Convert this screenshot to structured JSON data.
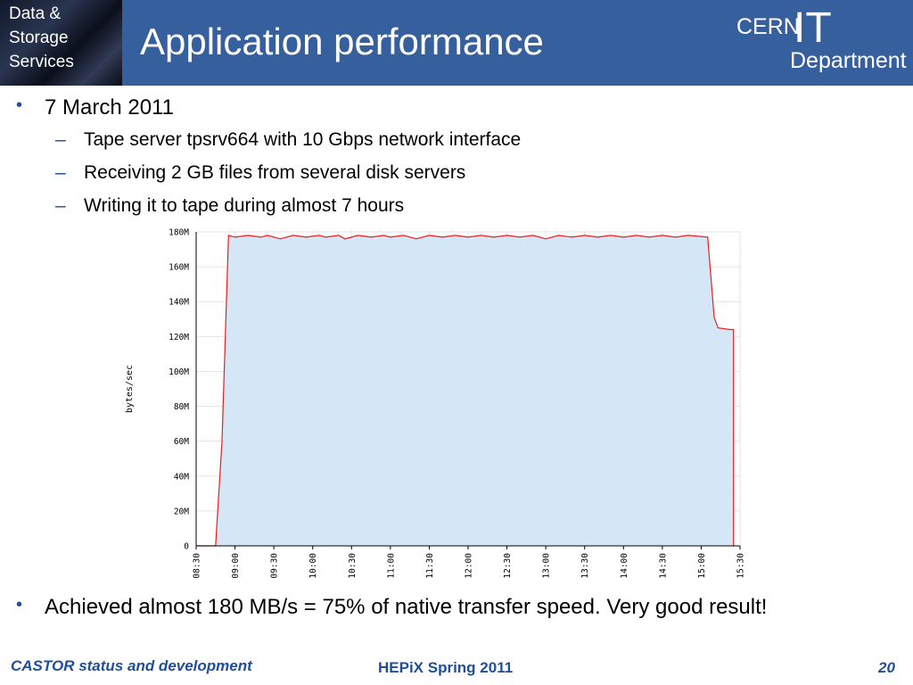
{
  "header": {
    "section_label": "Data &\nStorage\nServices",
    "title": "Application performance",
    "logo": {
      "cern": "CERN",
      "it": "IT",
      "department": "Department"
    }
  },
  "bullets": {
    "date": "7 March 2011",
    "sub": [
      "Tape server tpsrv664 with 10 Gbps network interface",
      "Receiving 2 GB files from several disk servers",
      "Writing it to tape during almost 7 hours"
    ],
    "result": "Achieved almost 180 MB/s = 75% of native transfer speed. Very good result!"
  },
  "footer": {
    "left": "CASTOR status and development",
    "center": "HEPiX Spring 2011",
    "page": "20"
  },
  "colors": {
    "header_bg": "#365f9e",
    "accent": "#1f4e9a",
    "area_fill": "#d5e7f6",
    "line": "#ee1c1c"
  },
  "chart_data": {
    "type": "area",
    "xlabel": "",
    "ylabel": "bytes/sec",
    "x_ticks": [
      "08:30",
      "09:00",
      "09:30",
      "10:00",
      "10:30",
      "11:00",
      "11:30",
      "12:00",
      "12:30",
      "13:00",
      "13:30",
      "14:00",
      "14:30",
      "15:00",
      "15:30"
    ],
    "y_ticks": [
      "0",
      "20M",
      "40M",
      "60M",
      "80M",
      "100M",
      "120M",
      "140M",
      "160M",
      "180M"
    ],
    "ylim": [
      0,
      180
    ],
    "x_range_minutes_after_0830": [
      0,
      420
    ],
    "grid": true,
    "series": [
      {
        "points": [
          [
            0,
            0
          ],
          [
            15,
            0
          ],
          [
            20,
            60
          ],
          [
            25,
            178
          ],
          [
            30,
            177
          ],
          [
            40,
            178
          ],
          [
            50,
            177
          ],
          [
            55,
            178
          ],
          [
            65,
            176
          ],
          [
            75,
            178
          ],
          [
            85,
            177
          ],
          [
            95,
            178
          ],
          [
            100,
            177
          ],
          [
            110,
            178
          ],
          [
            115,
            176
          ],
          [
            125,
            178
          ],
          [
            135,
            177
          ],
          [
            145,
            178
          ],
          [
            150,
            177
          ],
          [
            160,
            178
          ],
          [
            170,
            176
          ],
          [
            180,
            178
          ],
          [
            190,
            177
          ],
          [
            200,
            178
          ],
          [
            210,
            177
          ],
          [
            220,
            178
          ],
          [
            230,
            177
          ],
          [
            240,
            178
          ],
          [
            250,
            177
          ],
          [
            260,
            178
          ],
          [
            270,
            176
          ],
          [
            280,
            178
          ],
          [
            290,
            177
          ],
          [
            300,
            178
          ],
          [
            310,
            177
          ],
          [
            320,
            178
          ],
          [
            330,
            177
          ],
          [
            340,
            178
          ],
          [
            350,
            177
          ],
          [
            360,
            178
          ],
          [
            370,
            177
          ],
          [
            380,
            178
          ],
          [
            395,
            177
          ],
          [
            400,
            131
          ],
          [
            403,
            125
          ],
          [
            412,
            124
          ],
          [
            415,
            124
          ],
          [
            415,
            0
          ]
        ]
      }
    ]
  }
}
